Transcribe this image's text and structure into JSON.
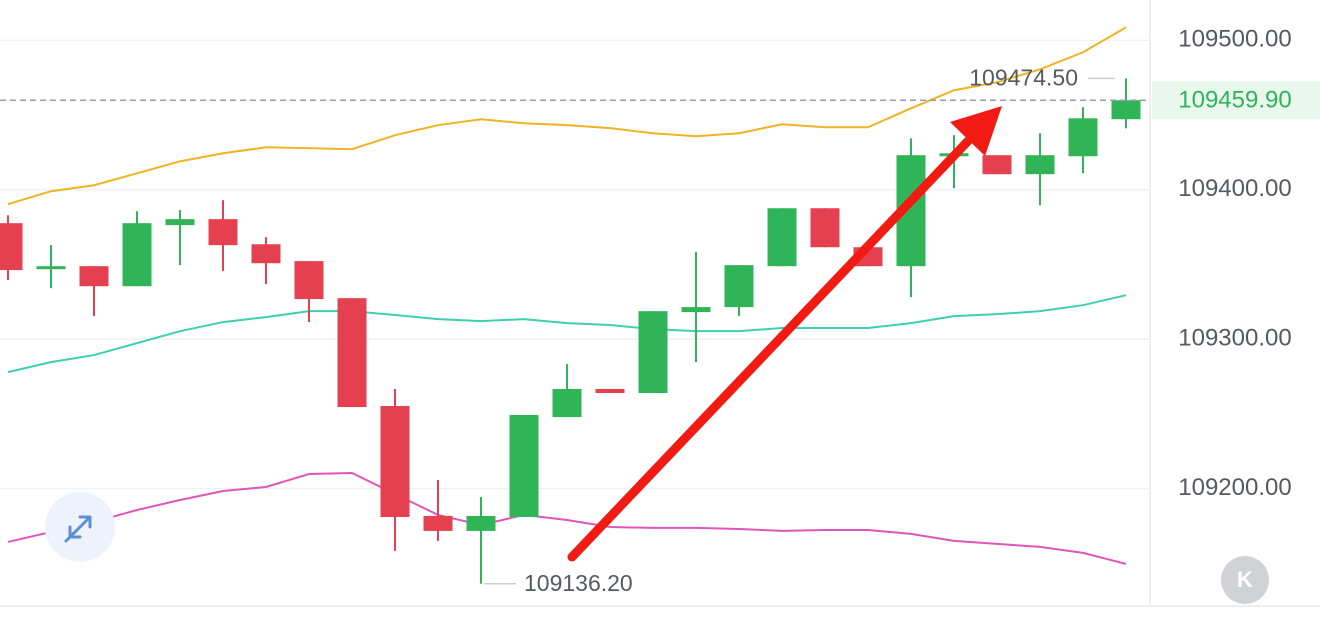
{
  "chart_data": {
    "type": "candlestick",
    "open": [
      109377.6,
      109346.8,
      109348.8,
      109335.4,
      109376.3,
      109380.3,
      109363.5,
      109352.2,
      109327.4,
      109255.2,
      109181.6,
      109171.6,
      109180.9,
      109247.8,
      109266.6,
      109263.9,
      109318.1,
      109321.4,
      109348.8,
      109387.6,
      109361.5,
      109348.8,
      109422.4,
      109423.1,
      109410.4,
      109422.4,
      109447.2
    ],
    "high": [
      109382.9,
      109362.9,
      109348.8,
      109385.6,
      109386.3,
      109393.0,
      109368.2,
      109352.2,
      109327.4,
      109266.6,
      109205.7,
      109194.3,
      109249.2,
      109283.3,
      109266.6,
      109318.7,
      109358.2,
      109349.5,
      109387.6,
      109387.6,
      109361.5,
      109434.4,
      109436.5,
      109423.1,
      109437.8,
      109455.2,
      109474.5
    ],
    "low": [
      109339.5,
      109334.1,
      109315.4,
      109335.4,
      109349.5,
      109345.5,
      109336.8,
      109311.4,
      109254.5,
      109158.2,
      109164.9,
      109136.2,
      109180.9,
      109247.8,
      109263.9,
      109263.9,
      109284.6,
      109315.4,
      109348.8,
      109361.5,
      109348.8,
      109328.1,
      109401.0,
      109410.4,
      109389.6,
      109411.0,
      109441.1
    ],
    "close": [
      109346.2,
      109348.8,
      109335.4,
      109377.6,
      109380.3,
      109362.9,
      109350.8,
      109326.8,
      109254.5,
      109180.9,
      109171.6,
      109181.6,
      109249.2,
      109266.6,
      109263.9,
      109318.7,
      109321.4,
      109349.5,
      109387.6,
      109361.5,
      109348.8,
      109423.1,
      109424.4,
      109410.4,
      109423.1,
      109447.8,
      109459.9
    ],
    "up_color": "#2fb457",
    "down_color": "#e5404f",
    "overlays": [
      {
        "color": "#f0b323",
        "values": [
          109390.3,
          109399.0,
          109403.0,
          109411.0,
          109419.0,
          109424.4,
          109428.4,
          109427.8,
          109427.1,
          109436.5,
          109443.2,
          109447.2,
          109444.5,
          109443.2,
          109441.2,
          109437.8,
          109435.8,
          109437.8,
          109443.8,
          109441.8,
          109441.8,
          109454.5,
          109466.6,
          109471.9,
          109480.6,
          109492.0,
          109508.7
        ]
      },
      {
        "color": "#3dcfb0",
        "values": [
          109277.9,
          109284.6,
          109289.3,
          109297.3,
          109305.3,
          109311.4,
          109314.7,
          109318.7,
          109318.7,
          109316.1,
          109313.4,
          109312.0,
          109313.4,
          109310.7,
          109309.4,
          109306.7,
          109305.3,
          109305.3,
          109307.4,
          109307.4,
          109307.4,
          109310.7,
          109315.4,
          109316.7,
          109318.7,
          109322.7,
          109329.4
        ]
      },
      {
        "color": "#e055b8",
        "values": [
          109164.2,
          109170.9,
          109177.6,
          109185.6,
          109192.3,
          109198.3,
          109201.0,
          109209.7,
          109210.4,
          109196.3,
          109182.3,
          109175.6,
          109182.3,
          109178.9,
          109174.2,
          109173.6,
          109173.6,
          109172.9,
          109171.6,
          109172.2,
          109172.2,
          109169.6,
          109164.9,
          109162.9,
          109160.9,
          109156.9,
          109149.5
        ]
      }
    ],
    "ylim": [
      109122,
      109527
    ],
    "yticks": [
      {
        "value": 109200,
        "label": "109200.00"
      },
      {
        "value": 109300,
        "label": "109300.00"
      },
      {
        "value": 109400,
        "label": "109400.00"
      },
      {
        "value": 109500,
        "label": "109500.00"
      }
    ],
    "grid": true,
    "last_price": {
      "value": 109459.9,
      "label": "109459.90",
      "color": "#2fb457"
    },
    "high_marker": {
      "value": 109474.5,
      "label": "109474.50"
    },
    "low_marker": {
      "value": 109136.2,
      "label": "109136.20"
    }
  },
  "controls": {
    "k_button": "K"
  }
}
